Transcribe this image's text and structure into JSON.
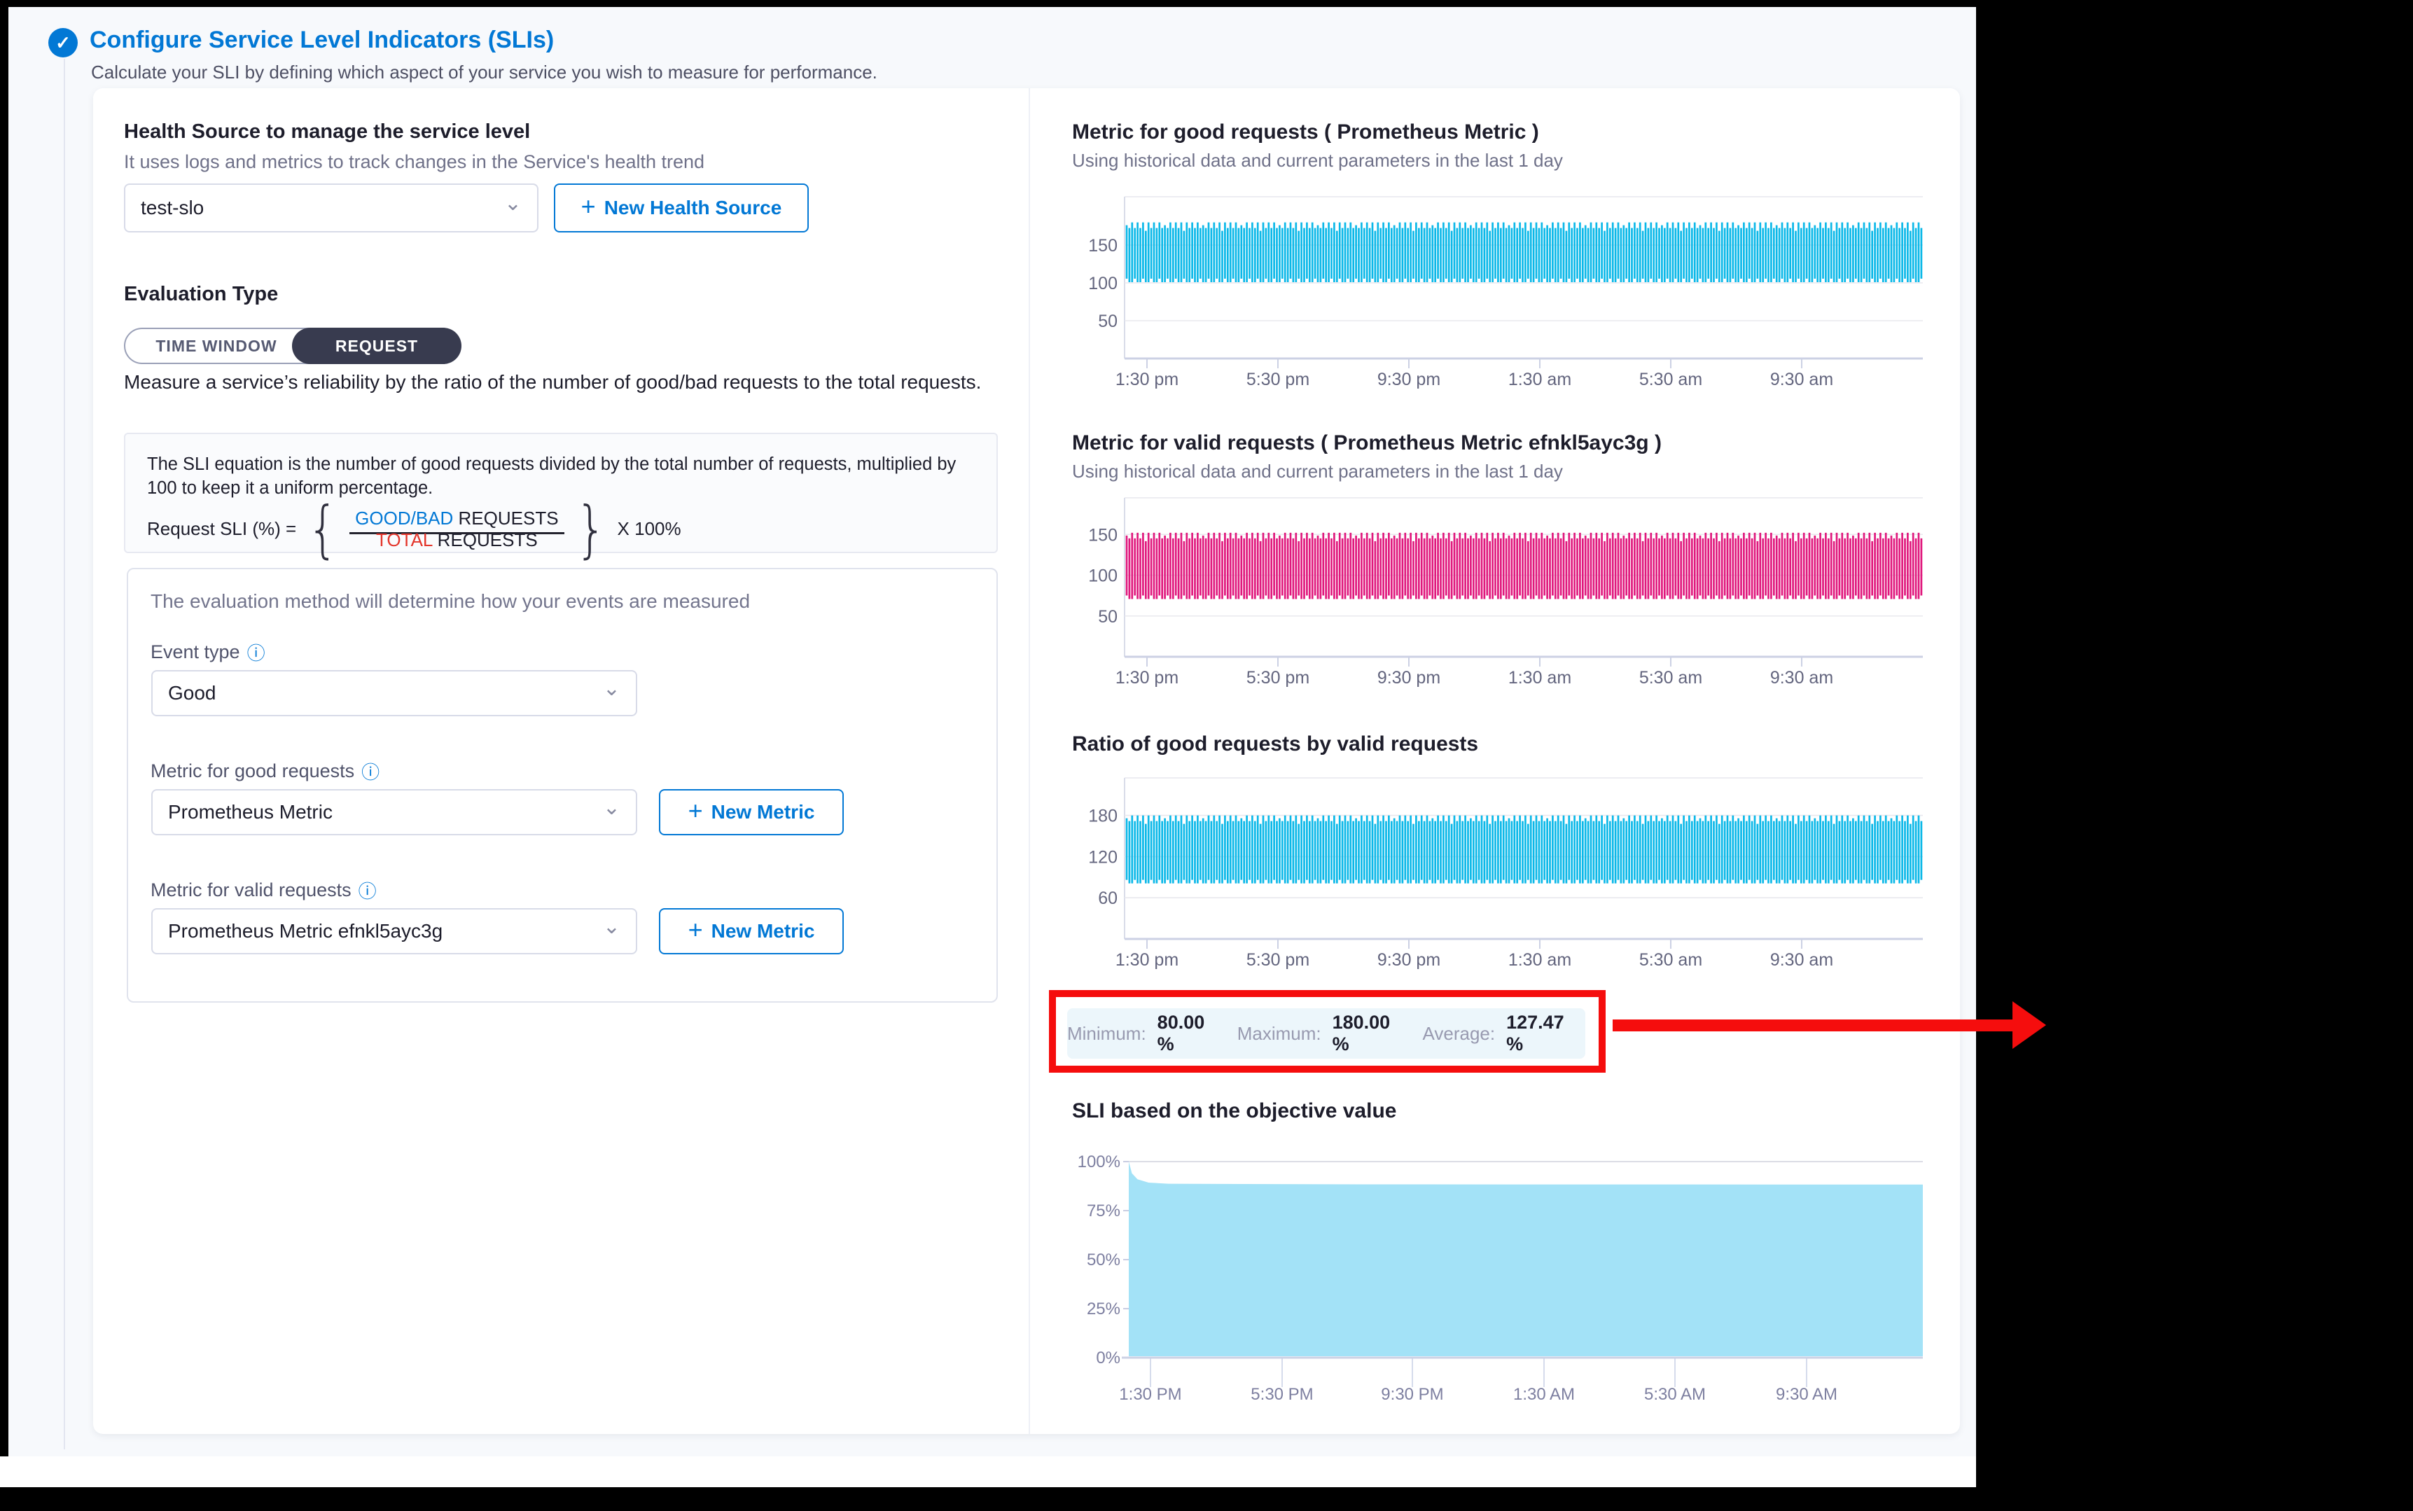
{
  "header": {
    "title": "Configure Service Level Indicators (SLIs)",
    "subtitle": "Calculate your SLI by defining which aspect of your service you wish to measure for performance.",
    "check_icon": "✓"
  },
  "form": {
    "health_source": {
      "label": "Health Source to manage the service level",
      "hint": "It uses logs and metrics to track changes in the Service's health trend",
      "selected": "test-slo",
      "new_button_label": "New Health Source"
    },
    "evaluation_type": {
      "label": "Evaluation Type",
      "options": [
        "TIME WINDOW",
        "REQUEST"
      ],
      "selected": "REQUEST",
      "description": "Measure a service’s reliability by the ratio of the number of good/bad requests to the total requests."
    },
    "equation": {
      "text": "The SLI equation is the number of good requests divided by the total number of requests, multiplied by 100 to keep it a uniform percentage.",
      "lhs": "Request SLI (%) =",
      "numerator_highlight": "GOOD/BAD",
      "numerator_rest": " REQUESTS",
      "denominator_highlight": "TOTAL",
      "denominator_rest": " REQUESTS",
      "multiplier": "X 100%"
    },
    "evaluation_method": {
      "hint": "The evaluation method will determine how your events are measured",
      "event_type": {
        "label": "Event type",
        "value": "Good"
      },
      "good_metric": {
        "label": "Metric for good requests",
        "value": "Prometheus Metric",
        "new_button_label": "New Metric"
      },
      "valid_metric": {
        "label": "Metric for valid requests",
        "value": "Prometheus Metric efnkl5ayc3g",
        "new_button_label": "New Metric"
      }
    }
  },
  "stats": {
    "minimum_label": "Minimum:",
    "minimum": "80.00 %",
    "maximum_label": "Maximum:",
    "maximum": "180.00 %",
    "average_label": "Average:",
    "average": "127.47 %"
  },
  "colors": {
    "accent_blue": "#0278d5",
    "chart_cyan": "#0bb8e8",
    "chart_magenta": "#e0187d",
    "chart_skyblue": "#a3e2f7",
    "annotation_red": "#f50d0d"
  },
  "chart_data": [
    {
      "type": "bar",
      "title": "Metric for good requests ( Prometheus Metric )",
      "subtitle": "Using historical data and current parameters in the last 1 day",
      "color": "#0bb8e8",
      "yticks": [
        50,
        100,
        150
      ],
      "band": {
        "min": 100,
        "max": 180
      },
      "xticks": [
        "1:30 pm",
        "5:30 pm",
        "9:30 pm",
        "1:30 am",
        "5:30 am",
        "9:30 am"
      ]
    },
    {
      "type": "bar",
      "title": "Metric for valid requests ( Prometheus Metric efnkl5ayc3g )",
      "subtitle": "Using historical data and current parameters in the last 1 day",
      "color": "#e0187d",
      "yticks": [
        50,
        100,
        150
      ],
      "band": {
        "min": 70,
        "max": 152
      },
      "xticks": [
        "1:30 pm",
        "5:30 pm",
        "9:30 pm",
        "1:30 am",
        "5:30 am",
        "9:30 am"
      ]
    },
    {
      "type": "bar",
      "title": "Ratio of good requests by valid requests",
      "subtitle": "",
      "color": "#0bb8e8",
      "yticks": [
        60,
        120,
        180
      ],
      "band": {
        "min": 80,
        "max": 180
      },
      "xticks": [
        "1:30 pm",
        "5:30 pm",
        "9:30 pm",
        "1:30 am",
        "5:30 am",
        "9:30 am"
      ]
    },
    {
      "type": "area",
      "title": "SLI based on the objective value",
      "subtitle": "",
      "color": "#a3e2f7",
      "yticks": [
        "0%",
        "25%",
        "50%",
        "75%",
        "100%"
      ],
      "profile": [
        [
          0,
          100
        ],
        [
          0.4,
          94
        ],
        [
          1.1,
          91
        ],
        [
          2.5,
          89.3
        ],
        [
          5,
          88.7
        ],
        [
          30,
          88.4
        ],
        [
          100,
          88.3
        ]
      ],
      "xticks": [
        "1:30 PM",
        "5:30 PM",
        "9:30 PM",
        "1:30 AM",
        "5:30 AM",
        "9:30 AM"
      ]
    }
  ]
}
